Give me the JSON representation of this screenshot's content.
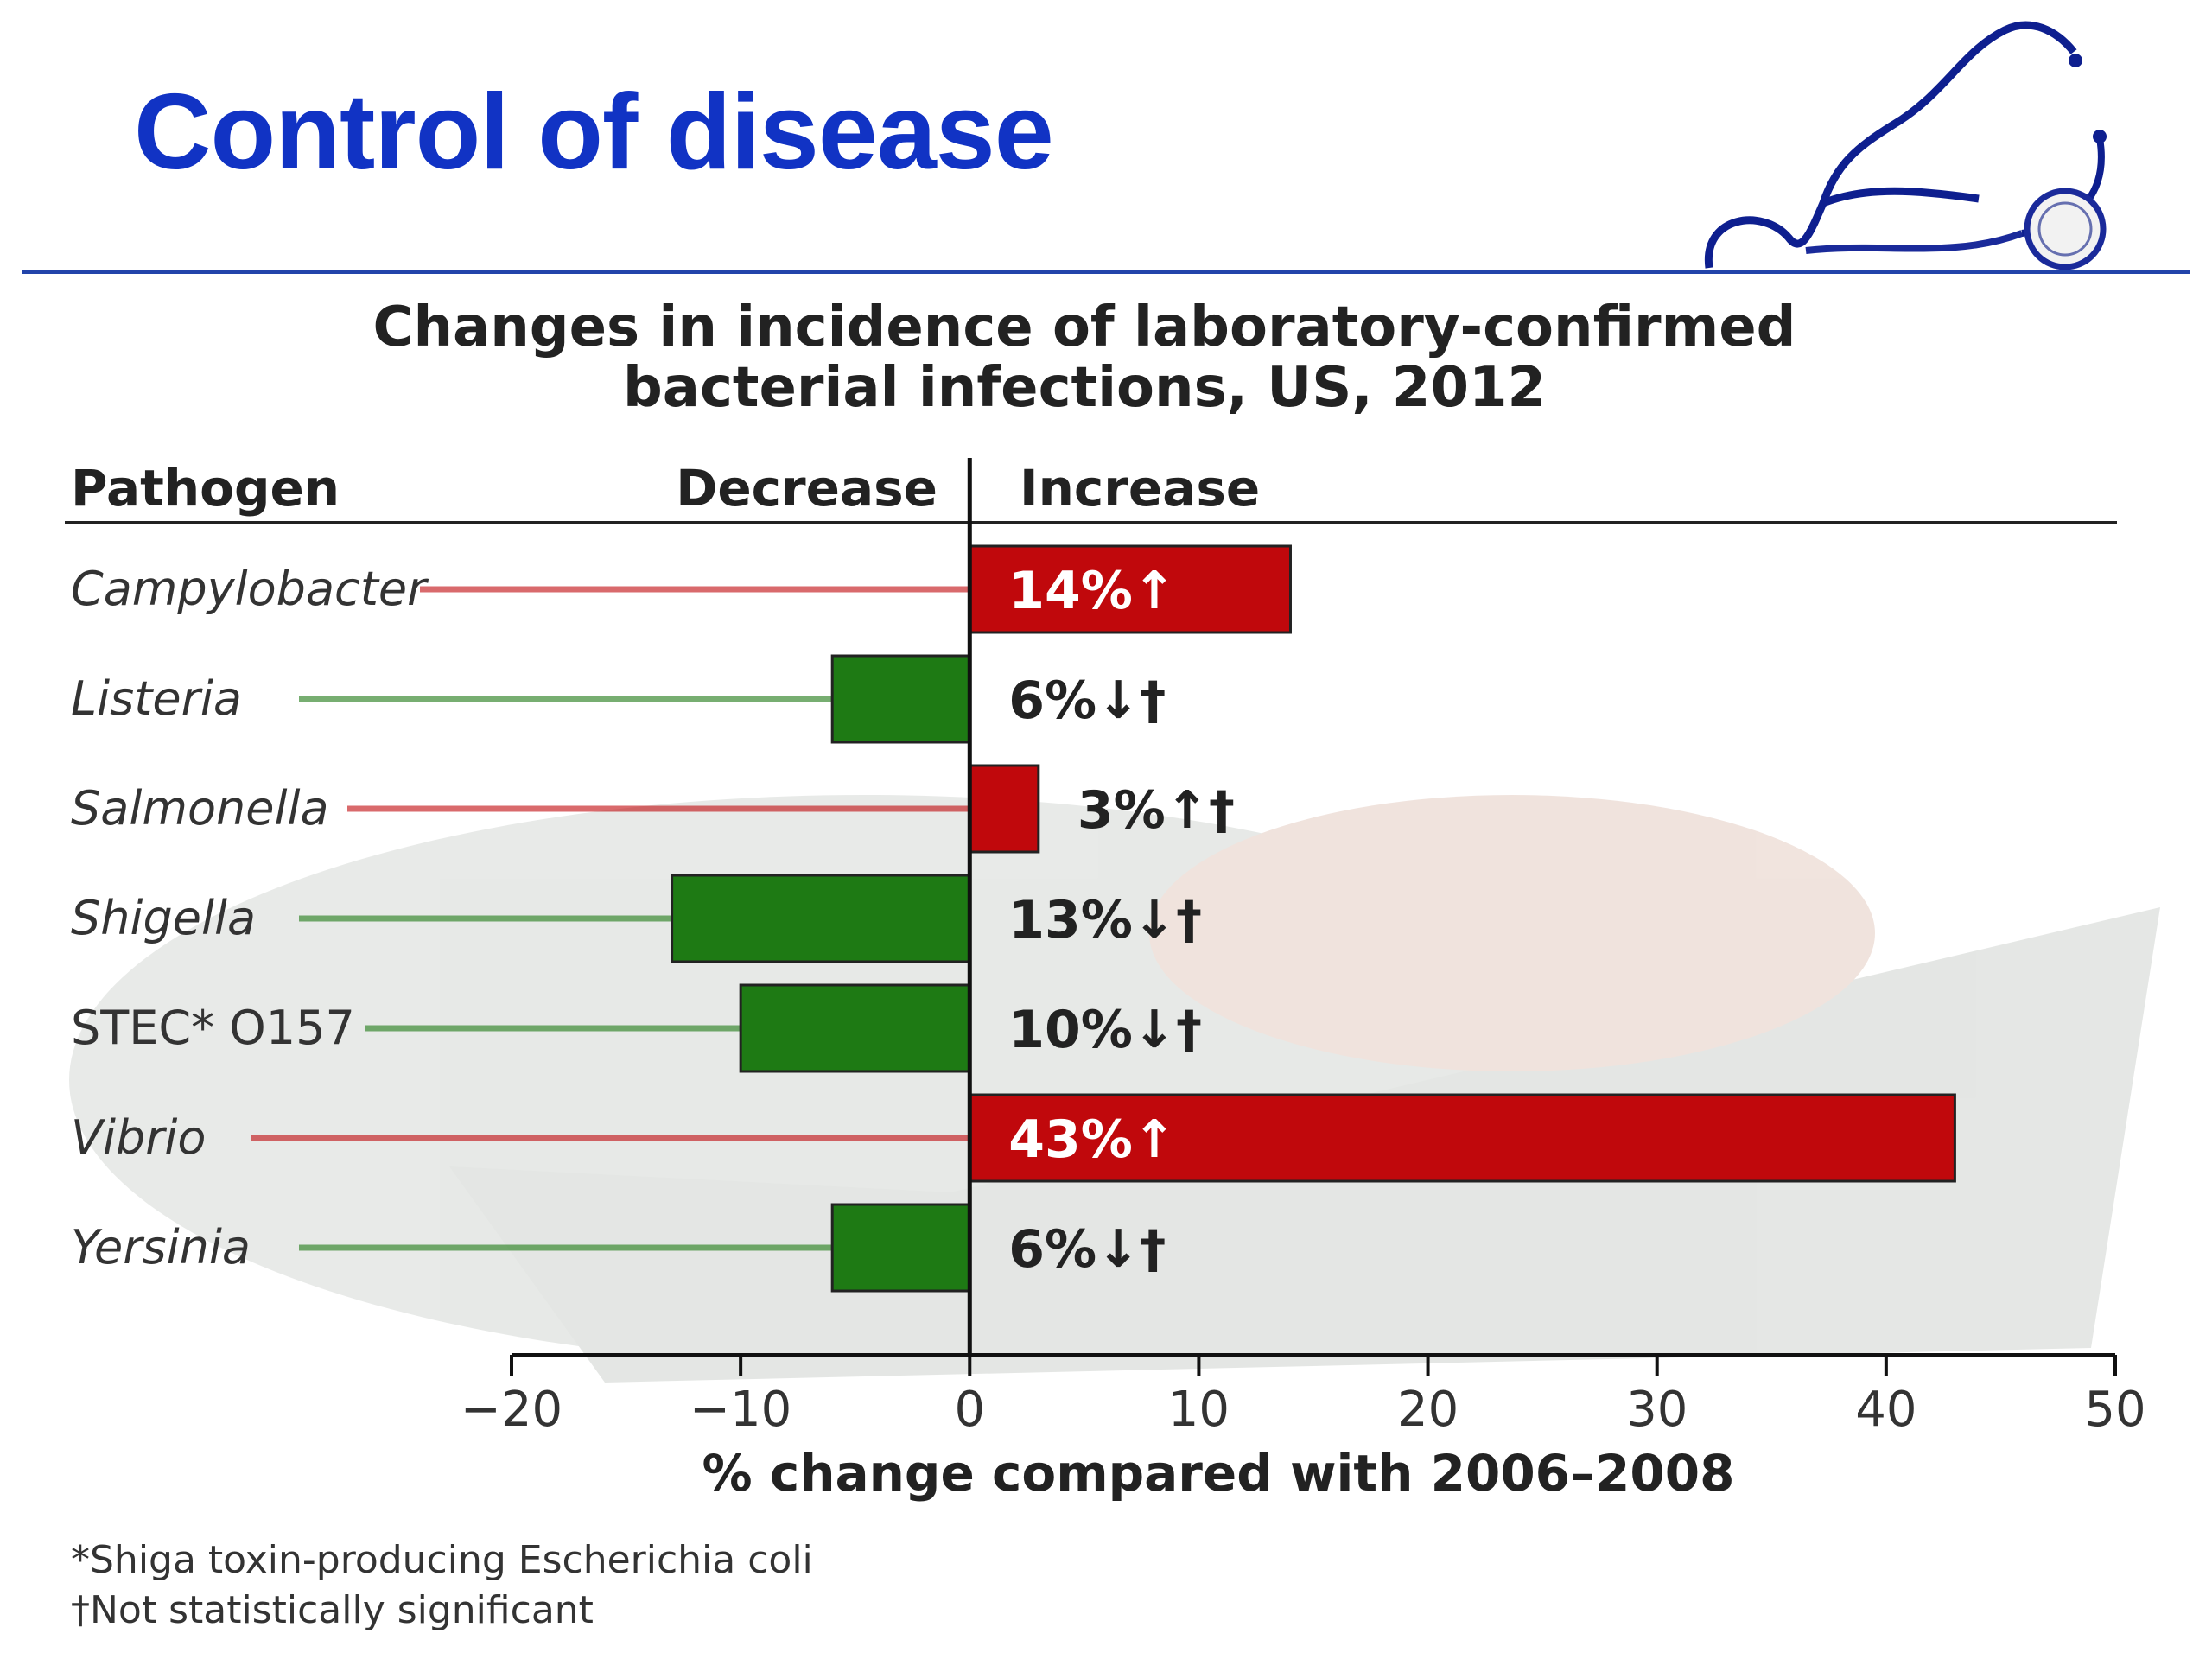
{
  "slide": {
    "title": "Control of disease",
    "logo_icon": "stethoscope-icon",
    "accent_color": "#1133c4"
  },
  "chart_data": {
    "type": "bar",
    "orientation": "horizontal",
    "title_line1": "Changes in incidence of laboratory-confirmed",
    "title_line2": "bacterial infections, US, 2012",
    "column_headers": {
      "category": "Pathogen",
      "negative": "Decrease",
      "positive": "Increase"
    },
    "categories": [
      "Campylobacter",
      "Listeria",
      "Salmonella",
      "Shigella",
      "STEC* O157",
      "Vibrio",
      "Yersinia"
    ],
    "values": [
      14,
      -6,
      3,
      -13,
      -10,
      43,
      -6
    ],
    "labels": [
      "14%↑",
      "6%↓†",
      "3%↑†",
      "13%↓†",
      "10%↓†",
      "43%↑",
      "6%↓†"
    ],
    "colors": {
      "increase": "#c0080c",
      "decrease": "#1e7a14"
    },
    "xlim": [
      -20,
      50
    ],
    "xticks": [
      -20,
      -10,
      0,
      10,
      20,
      30,
      40,
      50
    ],
    "xtick_labels": [
      "−20",
      "−10",
      "0",
      "10",
      "20",
      "30",
      "40",
      "50"
    ],
    "xlabel": "% change compared with 2006–2008",
    "footnotes": [
      "*Shiga toxin-producing Escherichia coli",
      "†Not statistically significant"
    ],
    "grid": false,
    "legend": "none"
  }
}
